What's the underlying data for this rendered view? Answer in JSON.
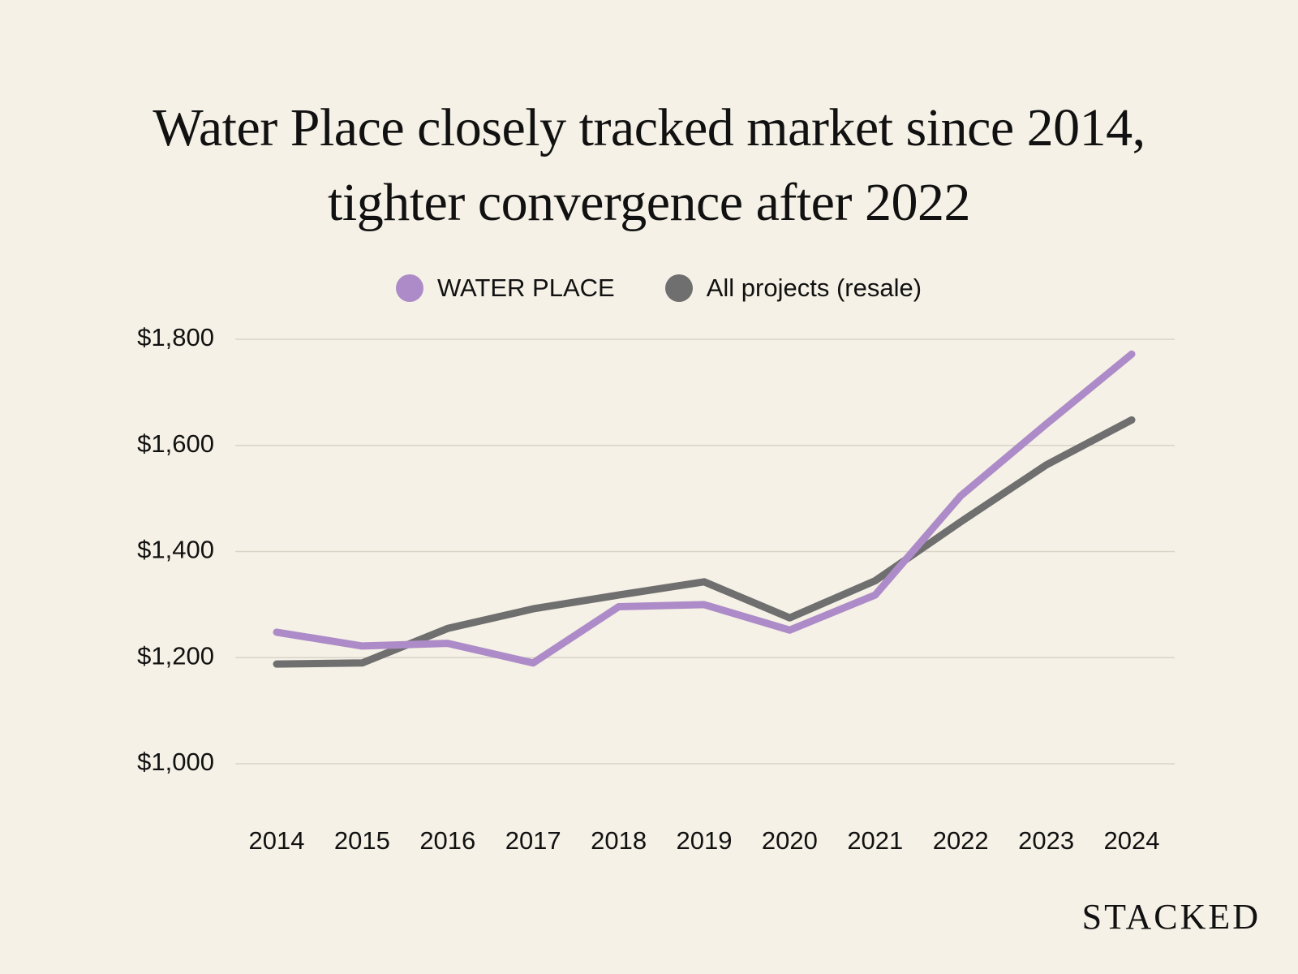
{
  "chart_data": {
    "type": "line",
    "title_lines": [
      "Water Place closely tracked market since 2014,",
      "tighter convergence after 2022"
    ],
    "x": [
      "2014",
      "2015",
      "2016",
      "2017",
      "2018",
      "2019",
      "2020",
      "2021",
      "2022",
      "2023",
      "2024"
    ],
    "series": [
      {
        "name": "WATER PLACE",
        "color": "#ad8bc8",
        "values": [
          1248,
          1222,
          1227,
          1190,
          1296,
          1300,
          1252,
          1318,
          1505,
          1640,
          1772
        ]
      },
      {
        "name": "All projects (resale)",
        "color": "#6f6f6f",
        "values": [
          1188,
          1190,
          1255,
          1292,
          1318,
          1343,
          1275,
          1345,
          1456,
          1563,
          1648
        ]
      }
    ],
    "ylim": [
      1000,
      1800
    ],
    "yticks": [
      1800,
      1600,
      1400,
      1200,
      1000
    ],
    "ytick_labels": [
      "$1,800",
      "$1,600",
      "$1,400",
      "$1,200",
      "$1,000"
    ],
    "xlabel": "",
    "ylabel": "",
    "grid": true,
    "legend_position": "top-center"
  },
  "brand": {
    "name": "STACKED"
  }
}
